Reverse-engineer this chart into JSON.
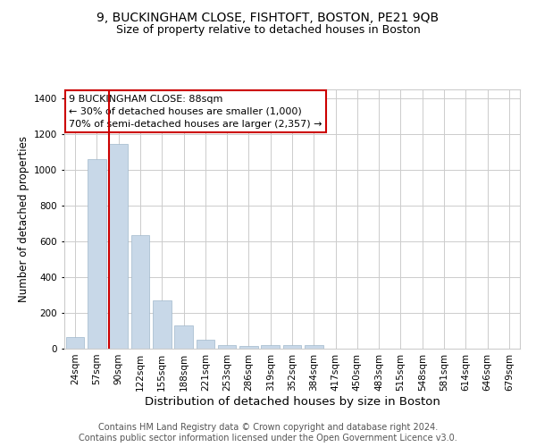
{
  "title": "9, BUCKINGHAM CLOSE, FISHTOFT, BOSTON, PE21 9QB",
  "subtitle": "Size of property relative to detached houses in Boston",
  "xlabel": "Distribution of detached houses by size in Boston",
  "ylabel": "Number of detached properties",
  "categories": [
    "24sqm",
    "57sqm",
    "90sqm",
    "122sqm",
    "155sqm",
    "188sqm",
    "221sqm",
    "253sqm",
    "286sqm",
    "319sqm",
    "352sqm",
    "384sqm",
    "417sqm",
    "450sqm",
    "483sqm",
    "515sqm",
    "548sqm",
    "581sqm",
    "614sqm",
    "646sqm",
    "679sqm"
  ],
  "values": [
    65,
    1060,
    1145,
    635,
    270,
    130,
    50,
    18,
    15,
    20,
    22,
    20,
    0,
    0,
    0,
    0,
    0,
    0,
    0,
    0,
    0
  ],
  "bar_color": "#c8d8e8",
  "bar_edge_color": "#a0b8cc",
  "highlight_bar_index": 2,
  "highlight_line_color": "#cc0000",
  "annotation_text": "9 BUCKINGHAM CLOSE: 88sqm\n← 30% of detached houses are smaller (1,000)\n70% of semi-detached houses are larger (2,357) →",
  "annotation_box_color": "#ffffff",
  "annotation_box_edge_color": "#cc0000",
  "ylim": [
    0,
    1450
  ],
  "yticks": [
    0,
    200,
    400,
    600,
    800,
    1000,
    1200,
    1400
  ],
  "footnote": "Contains HM Land Registry data © Crown copyright and database right 2024.\nContains public sector information licensed under the Open Government Licence v3.0.",
  "bg_color": "#ffffff",
  "grid_color": "#cccccc",
  "title_fontsize": 10,
  "subtitle_fontsize": 9,
  "xlabel_fontsize": 9.5,
  "ylabel_fontsize": 8.5,
  "footnote_fontsize": 7,
  "tick_fontsize": 7.5
}
